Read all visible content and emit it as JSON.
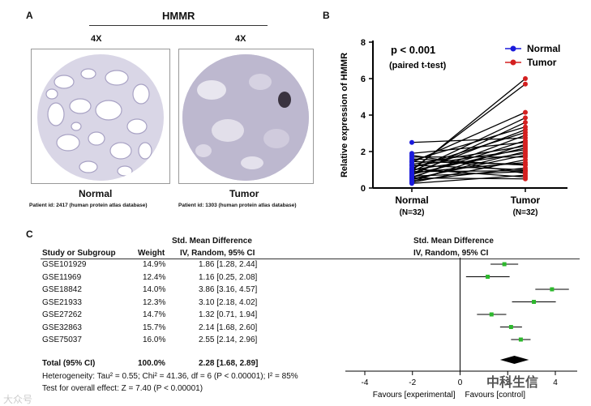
{
  "panel_a": {
    "label": "A",
    "title": "HMMR",
    "normal": {
      "magnification": "4X",
      "name": "Normal",
      "patient": "Patient id: 2417 (human protein atlas database)"
    },
    "tumor": {
      "magnification": "4X",
      "name": "Tumor",
      "patient": "Patient id: 1303 (human protein atlas database)"
    }
  },
  "panel_b": {
    "label": "B",
    "stat_line1": "p < 0.001",
    "stat_line2": "(paired t-test)"
  },
  "panel_c": {
    "label": "C",
    "col_smd": "Std. Mean Difference",
    "col_study": "Study or Subgroup",
    "col_weight": "Weight",
    "col_method": "IV, Random, 95% CI",
    "plot_col_title": "Std. Mean Difference",
    "plot_col_method": "IV, Random, 95% CI",
    "studies": [
      {
        "name": "GSE101929",
        "weight": "14.9%",
        "ci_text": "1.86 [1.28, 2.44]",
        "est": 1.86,
        "lo": 1.28,
        "hi": 2.44
      },
      {
        "name": "GSE11969",
        "weight": "12.4%",
        "ci_text": "1.16 [0.25, 2.08]",
        "est": 1.16,
        "lo": 0.25,
        "hi": 2.08
      },
      {
        "name": "GSE18842",
        "weight": "14.0%",
        "ci_text": "3.86 [3.16, 4.57]",
        "est": 3.86,
        "lo": 3.16,
        "hi": 4.57
      },
      {
        "name": "GSE21933",
        "weight": "12.3%",
        "ci_text": "3.10 [2.18, 4.02]",
        "est": 3.1,
        "lo": 2.18,
        "hi": 4.02
      },
      {
        "name": "GSE27262",
        "weight": "14.7%",
        "ci_text": "1.32 [0.71, 1.94]",
        "est": 1.32,
        "lo": 0.71,
        "hi": 1.94
      },
      {
        "name": "GSE32863",
        "weight": "15.7%",
        "ci_text": "2.14 [1.68, 2.60]",
        "est": 2.14,
        "lo": 1.68,
        "hi": 2.6
      },
      {
        "name": "GSE75037",
        "weight": "16.0%",
        "ci_text": "2.55 [2.14, 2.96]",
        "est": 2.55,
        "lo": 2.14,
        "hi": 2.96
      }
    ],
    "total": {
      "name": "Total (95% CI)",
      "weight": "100.0%",
      "ci_text": "2.28 [1.68, 2.89]",
      "est": 2.28,
      "lo": 1.68,
      "hi": 2.89
    },
    "heterogeneity": "Heterogeneity: Tau² = 0.55; Chi² = 41.36, df = 6 (P < 0.00001); I² = 85%",
    "overall_effect": "Test for overall effect: Z = 7.40 (P < 0.00001)",
    "axis_ticks": [
      "-4",
      "-2",
      "0",
      "2",
      "4"
    ],
    "favours_left": "Favours [experimental]",
    "favours_right": "Favours [control]"
  },
  "watermarks": {
    "left": "大众号",
    "right": "中科生信"
  },
  "chart_data": [
    {
      "type": "line",
      "title": "",
      "xlabel": "",
      "ylabel": "Relative expression of HMMR",
      "ylim": [
        0,
        8
      ],
      "yticks": [
        0,
        2,
        4,
        6,
        8
      ],
      "categories": [
        "Normal\n(N=32)",
        "Tumor\n(N=32)"
      ],
      "category_labels": [
        {
          "name": "Normal",
          "n": "(N=32)"
        },
        {
          "name": "Tumor",
          "n": "(N=32)"
        }
      ],
      "legend": [
        {
          "name": "Normal",
          "color": "#1a1adb"
        },
        {
          "name": "Tumor",
          "color": "#d42020"
        }
      ],
      "legend_position": "top-right",
      "pairs": [
        [
          0.95,
          6.0
        ],
        [
          1.0,
          5.7
        ],
        [
          1.4,
          4.15
        ],
        [
          0.9,
          3.85
        ],
        [
          0.7,
          3.6
        ],
        [
          1.5,
          3.35
        ],
        [
          0.8,
          3.2
        ],
        [
          1.1,
          3.05
        ],
        [
          0.55,
          2.9
        ],
        [
          2.5,
          2.75
        ],
        [
          0.6,
          2.6
        ],
        [
          1.9,
          2.5
        ],
        [
          0.35,
          2.4
        ],
        [
          1.3,
          2.3
        ],
        [
          0.75,
          2.2
        ],
        [
          1.2,
          2.1
        ],
        [
          0.45,
          2.0
        ],
        [
          1.0,
          1.9
        ],
        [
          0.5,
          1.8
        ],
        [
          1.7,
          1.7
        ],
        [
          0.3,
          1.55
        ],
        [
          0.85,
          1.4
        ],
        [
          1.6,
          1.25
        ],
        [
          0.4,
          1.1
        ],
        [
          1.25,
          1.0
        ],
        [
          0.65,
          0.9
        ],
        [
          1.8,
          0.8
        ],
        [
          0.25,
          0.7
        ],
        [
          1.05,
          0.6
        ],
        [
          0.55,
          0.5
        ],
        [
          0.9,
          0.95
        ],
        [
          1.45,
          1.3
        ]
      ]
    },
    {
      "type": "scatter",
      "title": "Std. Mean Difference IV, Random, 95% CI",
      "xlabel": "",
      "xlim": [
        -4,
        4
      ],
      "xticks": [
        -4,
        -2,
        0,
        2,
        4
      ],
      "series": [
        {
          "name": "GSE101929",
          "est": 1.86,
          "lo": 1.28,
          "hi": 2.44
        },
        {
          "name": "GSE11969",
          "est": 1.16,
          "lo": 0.25,
          "hi": 2.08
        },
        {
          "name": "GSE18842",
          "est": 3.86,
          "lo": 3.16,
          "hi": 4.57
        },
        {
          "name": "GSE21933",
          "est": 3.1,
          "lo": 2.18,
          "hi": 4.02
        },
        {
          "name": "GSE27262",
          "est": 1.32,
          "lo": 0.71,
          "hi": 1.94
        },
        {
          "name": "GSE32863",
          "est": 2.14,
          "lo": 1.68,
          "hi": 2.6
        },
        {
          "name": "GSE75037",
          "est": 2.55,
          "lo": 2.14,
          "hi": 2.96
        }
      ],
      "total": {
        "est": 2.28,
        "lo": 1.68,
        "hi": 2.89
      }
    }
  ]
}
